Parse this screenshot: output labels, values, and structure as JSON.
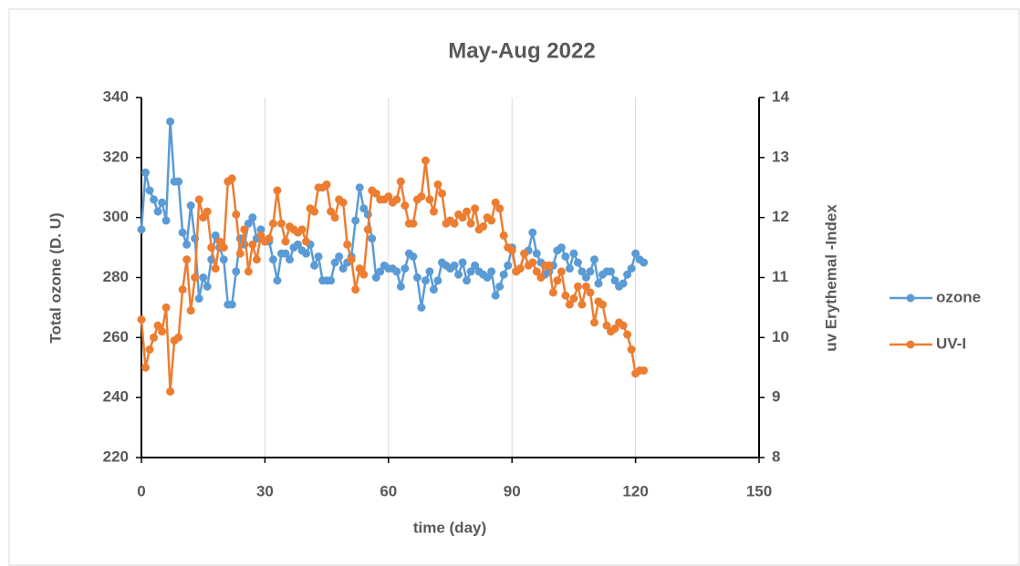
{
  "chart_data": {
    "type": "line",
    "title": "May-Aug 2022",
    "xlabel": "time (day)",
    "ylabel": "Total ozone (D. U)",
    "y2label": "uv Erythemal -Index",
    "xlim": [
      0,
      150
    ],
    "xticks": [
      0,
      30,
      60,
      90,
      120,
      150
    ],
    "ylim": [
      220,
      340
    ],
    "yticks": [
      220,
      240,
      260,
      280,
      300,
      320,
      340
    ],
    "y2lim": [
      8,
      14
    ],
    "y2ticks": [
      8,
      9,
      10,
      11,
      12,
      13,
      14
    ],
    "grid": "x",
    "legend": "right",
    "x": [
      0,
      1,
      2,
      3,
      4,
      5,
      6,
      7,
      8,
      9,
      10,
      11,
      12,
      13,
      14,
      15,
      16,
      17,
      18,
      19,
      20,
      21,
      22,
      23,
      24,
      25,
      26,
      27,
      28,
      29,
      30,
      31,
      32,
      33,
      34,
      35,
      36,
      37,
      38,
      39,
      40,
      41,
      42,
      43,
      44,
      45,
      46,
      47,
      48,
      49,
      50,
      51,
      52,
      53,
      54,
      55,
      56,
      57,
      58,
      59,
      60,
      61,
      62,
      63,
      64,
      65,
      66,
      67,
      68,
      69,
      70,
      71,
      72,
      73,
      74,
      75,
      76,
      77,
      78,
      79,
      80,
      81,
      82,
      83,
      84,
      85,
      86,
      87,
      88,
      89,
      90,
      91,
      92,
      93,
      94,
      95,
      96,
      97,
      98,
      99,
      100,
      101,
      102,
      103,
      104,
      105,
      106,
      107,
      108,
      109,
      110,
      111,
      112,
      113,
      114,
      115,
      116,
      117,
      118,
      119,
      120,
      121,
      122
    ],
    "series": [
      {
        "name": "ozone",
        "color": "#5b9bd5",
        "axis": "y",
        "values": [
          296,
          315,
          309,
          306,
          302,
          305,
          299,
          332,
          312,
          312,
          295,
          291,
          304,
          293,
          273,
          280,
          277,
          286,
          294,
          290,
          286,
          271,
          271,
          282,
          293,
          291,
          298,
          300,
          293,
          296,
          292,
          292,
          286,
          279,
          288,
          288,
          286,
          290,
          291,
          289,
          288,
          291,
          284,
          287,
          279,
          279,
          279,
          285,
          287,
          283,
          285,
          287,
          299,
          310,
          303,
          301,
          293,
          280,
          282,
          284,
          283,
          283,
          282,
          277,
          283,
          288,
          287,
          280,
          270,
          279,
          282,
          276,
          279,
          285,
          284,
          283,
          284,
          281,
          285,
          279,
          282,
          284,
          282,
          281,
          280,
          282,
          274,
          277,
          281,
          284,
          290,
          282,
          283,
          288,
          289,
          295,
          288,
          285,
          281,
          282,
          284,
          289,
          290,
          287,
          283,
          288,
          285,
          282,
          280,
          282,
          286,
          278,
          281,
          282,
          282,
          279,
          277,
          278,
          281,
          283,
          288,
          286,
          285
        ]
      },
      {
        "name": "UV-I",
        "color": "#ed7d31",
        "axis": "y2",
        "values": [
          10.3,
          9.5,
          9.8,
          10.0,
          10.2,
          10.1,
          10.5,
          9.1,
          9.95,
          10.0,
          10.8,
          11.3,
          10.45,
          11.0,
          12.3,
          12.0,
          12.1,
          11.5,
          11.15,
          11.6,
          11.5,
          12.6,
          12.65,
          12.05,
          11.4,
          11.8,
          11.1,
          11.55,
          11.3,
          11.7,
          11.6,
          11.65,
          11.9,
          12.45,
          11.9,
          11.6,
          11.85,
          11.8,
          11.75,
          11.8,
          11.6,
          12.15,
          12.1,
          12.5,
          12.5,
          12.55,
          12.1,
          12.0,
          12.3,
          12.25,
          11.55,
          11.3,
          10.8,
          11.15,
          11.05,
          11.8,
          12.45,
          12.4,
          12.3,
          12.3,
          12.35,
          12.25,
          12.3,
          12.6,
          12.2,
          11.9,
          11.9,
          12.3,
          12.35,
          12.95,
          12.3,
          12.1,
          12.55,
          12.4,
          11.9,
          11.95,
          11.9,
          12.05,
          12.0,
          12.1,
          11.9,
          12.15,
          11.8,
          11.85,
          12.0,
          11.95,
          12.25,
          12.15,
          11.7,
          11.5,
          11.45,
          11.1,
          11.15,
          11.4,
          11.2,
          11.25,
          11.1,
          11.0,
          11.2,
          11.2,
          10.75,
          10.95,
          11.1,
          10.7,
          10.55,
          10.65,
          10.85,
          10.55,
          10.85,
          10.75,
          10.25,
          10.6,
          10.55,
          10.2,
          10.1,
          10.15,
          10.25,
          10.2,
          10.05,
          9.8,
          9.4,
          9.45,
          9.45
        ]
      }
    ]
  }
}
